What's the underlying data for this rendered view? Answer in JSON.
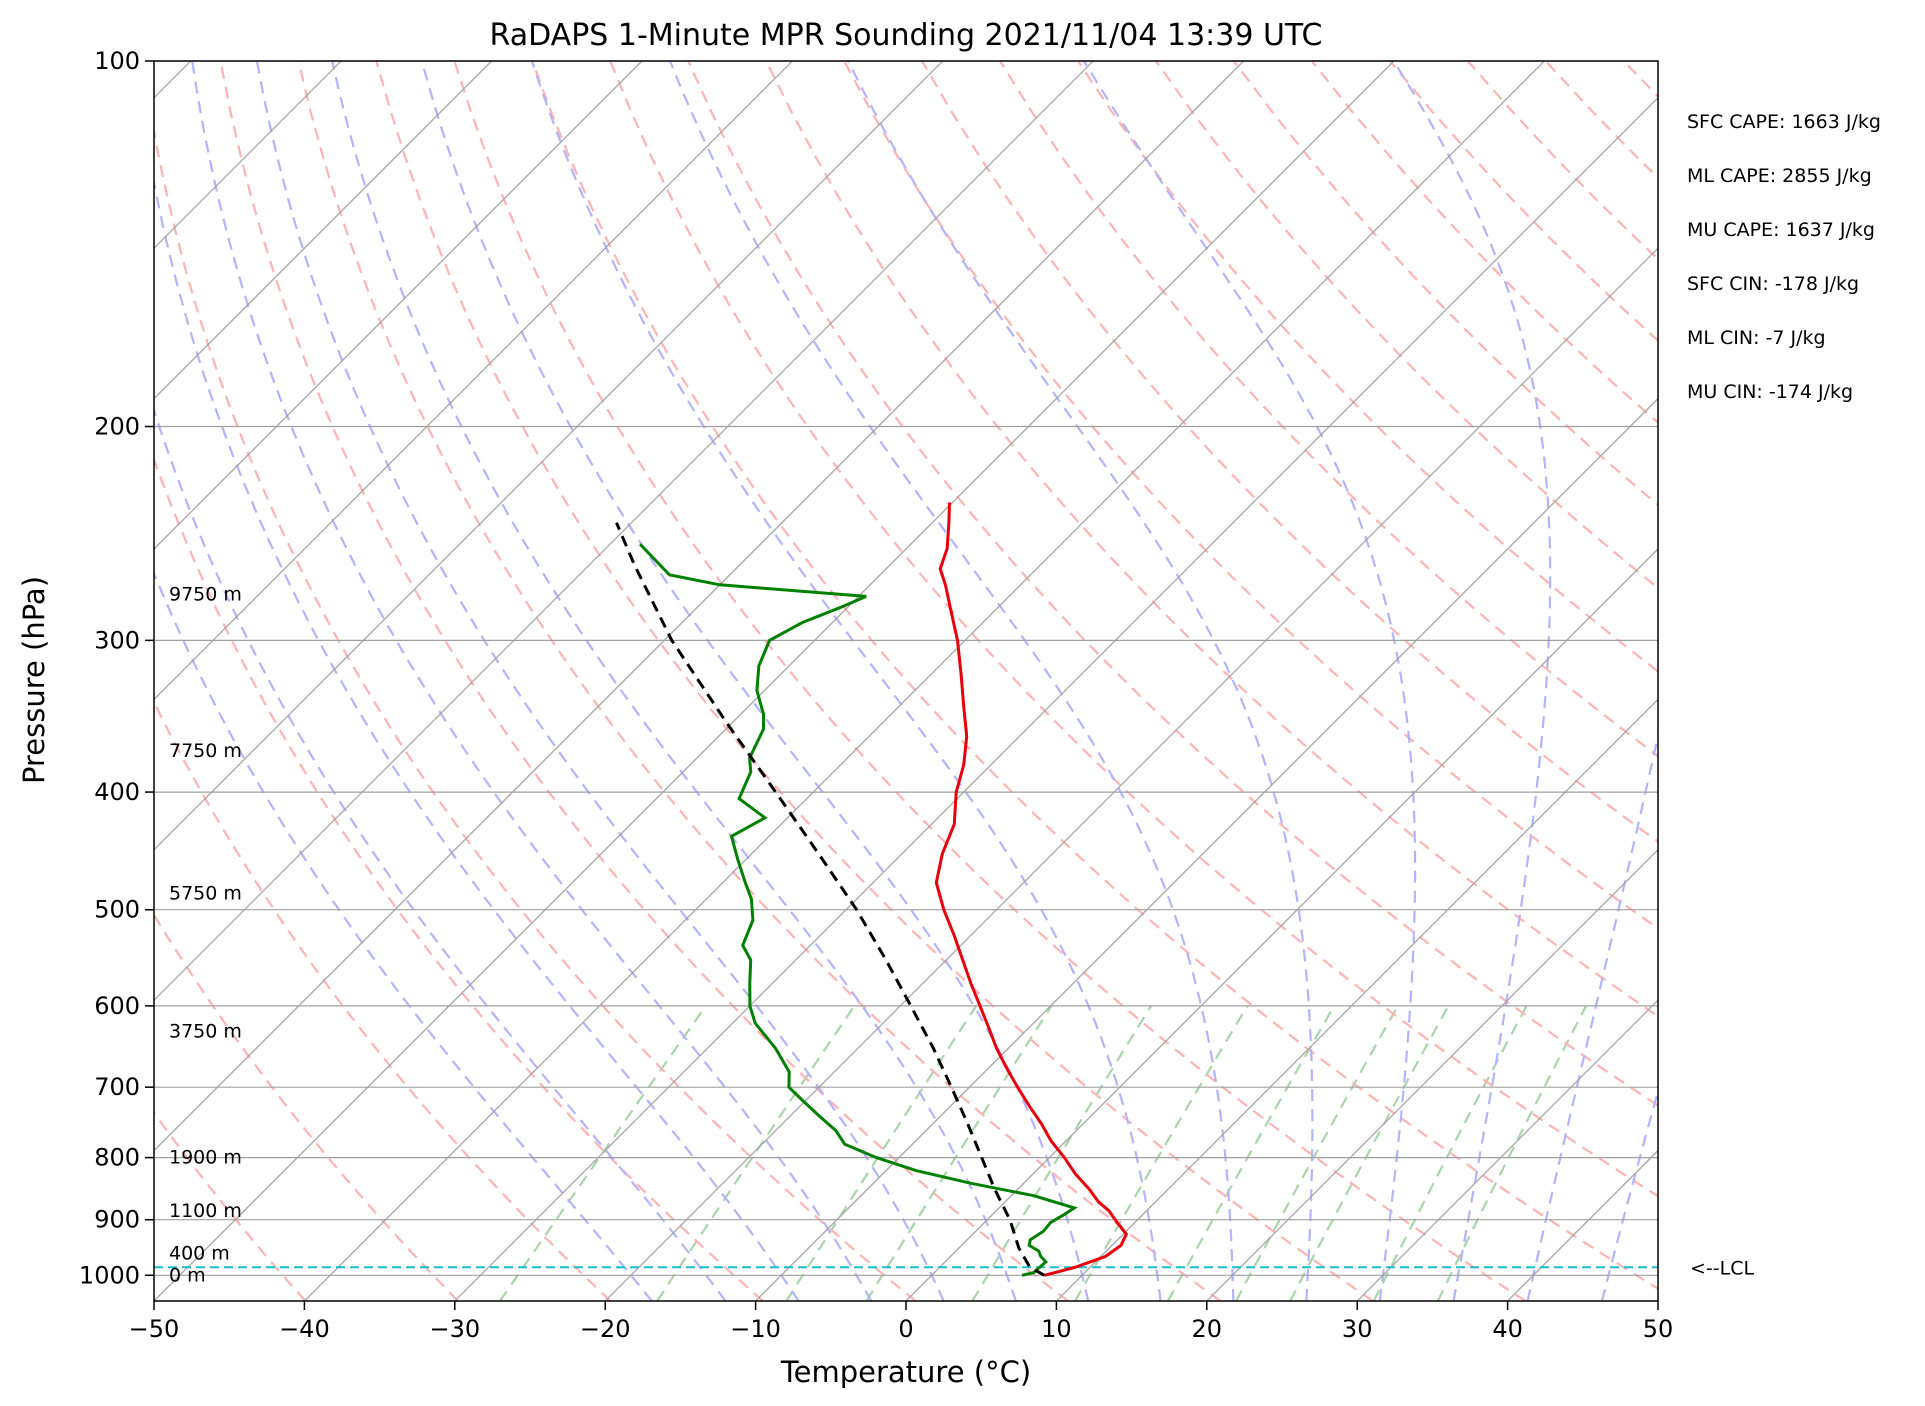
{
  "chart_data": {
    "type": "line",
    "subtype": "skew-T log-p sounding",
    "title": "RaDAPS 1-Minute MPR Sounding 2021/11/04 13:39 UTC",
    "xlabel": "Temperature (°C)",
    "ylabel": "Pressure (hPa)",
    "xlim": [
      -50,
      50
    ],
    "ylim": [
      1050,
      100
    ],
    "y_scale": "log",
    "x_ticks": [
      -50,
      -40,
      -30,
      -20,
      -10,
      0,
      10,
      20,
      30,
      40,
      50
    ],
    "x_tick_labels": [
      "−50",
      "−40",
      "−30",
      "−20",
      "−10",
      "0",
      "10",
      "20",
      "30",
      "40",
      "50"
    ],
    "y_ticks": [
      100,
      200,
      300,
      400,
      500,
      600,
      700,
      800,
      900,
      1000
    ],
    "y_tick_labels": [
      "100",
      "200",
      "300",
      "400",
      "500",
      "600",
      "700",
      "800",
      "900",
      "1000"
    ],
    "skew_degrees": 45,
    "grid": true,
    "background_lines": {
      "isotherms_color": "#a0a0a0",
      "dry_adiabats_color": "#ffb3b3",
      "moist_adiabats_color": "#b3b3ff",
      "mixing_ratio_color": "#aad4aa"
    },
    "series": [
      {
        "color": "#e8000b",
        "points": [
          {
            "p": 1000,
            "t": 7.5
          },
          {
            "p": 985,
            "t": 9.0
          },
          {
            "p": 965,
            "t": 10.3
          },
          {
            "p": 945,
            "t": 10.6
          },
          {
            "p": 925,
            "t": 10.2
          },
          {
            "p": 900,
            "t": 8.5
          },
          {
            "p": 885,
            "t": 7.5
          },
          {
            "p": 870,
            "t": 6.2
          },
          {
            "p": 850,
            "t": 4.8
          },
          {
            "p": 825,
            "t": 2.8
          },
          {
            "p": 800,
            "t": 1.0
          },
          {
            "p": 775,
            "t": -1.0
          },
          {
            "p": 750,
            "t": -2.8
          },
          {
            "p": 725,
            "t": -4.8
          },
          {
            "p": 700,
            "t": -6.8
          },
          {
            "p": 675,
            "t": -8.8
          },
          {
            "p": 650,
            "t": -10.8
          },
          {
            "p": 625,
            "t": -12.7
          },
          {
            "p": 600,
            "t": -14.7
          },
          {
            "p": 575,
            "t": -16.8
          },
          {
            "p": 550,
            "t": -18.9
          },
          {
            "p": 525,
            "t": -21.1
          },
          {
            "p": 500,
            "t": -23.5
          },
          {
            "p": 475,
            "t": -25.8
          },
          {
            "p": 450,
            "t": -27.3
          },
          {
            "p": 425,
            "t": -28.5
          },
          {
            "p": 400,
            "t": -30.5
          },
          {
            "p": 380,
            "t": -31.8
          },
          {
            "p": 360,
            "t": -33.5
          },
          {
            "p": 340,
            "t": -35.7
          },
          {
            "p": 320,
            "t": -38.0
          },
          {
            "p": 300,
            "t": -40.5
          },
          {
            "p": 285,
            "t": -42.7
          },
          {
            "p": 270,
            "t": -45.0
          },
          {
            "p": 262,
            "t": -46.4
          },
          {
            "p": 252,
            "t": -47.3
          },
          {
            "p": 240,
            "t": -48.9
          },
          {
            "p": 231,
            "t": -50.2
          }
        ]
      },
      {
        "color": "#008000",
        "points": [
          {
            "p": 1000,
            "t": 6.0
          },
          {
            "p": 995,
            "t": 6.6
          },
          {
            "p": 975,
            "t": 6.7
          },
          {
            "p": 965,
            "t": 6.0
          },
          {
            "p": 955,
            "t": 5.5
          },
          {
            "p": 945,
            "t": 4.5
          },
          {
            "p": 935,
            "t": 4.2
          },
          {
            "p": 920,
            "t": 4.5
          },
          {
            "p": 905,
            "t": 4.4
          },
          {
            "p": 890,
            "t": 4.8
          },
          {
            "p": 880,
            "t": 5.0
          },
          {
            "p": 860,
            "t": 1.5
          },
          {
            "p": 840,
            "t": -3.5
          },
          {
            "p": 820,
            "t": -8.0
          },
          {
            "p": 800,
            "t": -11.5
          },
          {
            "p": 780,
            "t": -14.5
          },
          {
            "p": 760,
            "t": -16.0
          },
          {
            "p": 740,
            "t": -18.0
          },
          {
            "p": 720,
            "t": -20.0
          },
          {
            "p": 700,
            "t": -22.0
          },
          {
            "p": 680,
            "t": -23.0
          },
          {
            "p": 650,
            "t": -25.5
          },
          {
            "p": 620,
            "t": -28.5
          },
          {
            "p": 600,
            "t": -30.0
          },
          {
            "p": 575,
            "t": -31.5
          },
          {
            "p": 550,
            "t": -33.0
          },
          {
            "p": 535,
            "t": -34.5
          },
          {
            "p": 510,
            "t": -35.5
          },
          {
            "p": 490,
            "t": -37.0
          },
          {
            "p": 475,
            "t": -38.5
          },
          {
            "p": 455,
            "t": -40.5
          },
          {
            "p": 435,
            "t": -42.5
          },
          {
            "p": 420,
            "t": -41.5
          },
          {
            "p": 405,
            "t": -44.5
          },
          {
            "p": 385,
            "t": -45.5
          },
          {
            "p": 375,
            "t": -46.5
          },
          {
            "p": 355,
            "t": -47.5
          },
          {
            "p": 345,
            "t": -48.5
          },
          {
            "p": 330,
            "t": -50.5
          },
          {
            "p": 315,
            "t": -52.0
          },
          {
            "p": 300,
            "t": -53.0
          },
          {
            "p": 290,
            "t": -52.0
          },
          {
            "p": 282,
            "t": -50.5
          },
          {
            "p": 276,
            "t": -49.5
          },
          {
            "p": 270,
            "t": -60.0
          },
          {
            "p": 265,
            "t": -64.0
          },
          {
            "p": 250,
            "t": -68.0
          }
        ]
      },
      {
        "color": "#000000",
        "dashed": true,
        "points": [
          {
            "p": 1000,
            "t": 7.5
          },
          {
            "p": 985,
            "t": 6.0
          },
          {
            "p": 950,
            "t": 4.0
          },
          {
            "p": 900,
            "t": 1.5
          },
          {
            "p": 850,
            "t": -1.5
          },
          {
            "p": 800,
            "t": -4.5
          },
          {
            "p": 750,
            "t": -7.7
          },
          {
            "p": 700,
            "t": -11.2
          },
          {
            "p": 650,
            "t": -15.0
          },
          {
            "p": 600,
            "t": -19.3
          },
          {
            "p": 550,
            "t": -24.0
          },
          {
            "p": 500,
            "t": -29.3
          },
          {
            "p": 450,
            "t": -35.5
          },
          {
            "p": 400,
            "t": -42.5
          },
          {
            "p": 350,
            "t": -50.5
          },
          {
            "p": 300,
            "t": -59.5
          },
          {
            "p": 260,
            "t": -67.0
          },
          {
            "p": 240,
            "t": -71.0
          }
        ]
      }
    ],
    "lcl": {
      "p": 985,
      "label": "<--LCL"
    },
    "height_labels": [
      {
        "text": "0 m",
        "p": 1000
      },
      {
        "text": "400 m",
        "p": 960
      },
      {
        "text": "1100 m",
        "p": 885
      },
      {
        "text": "1900 m",
        "p": 800
      },
      {
        "text": "3750 m",
        "p": 630
      },
      {
        "text": "5750 m",
        "p": 485
      },
      {
        "text": "7750 m",
        "p": 370
      },
      {
        "text": "9750 m",
        "p": 275
      }
    ],
    "stats": [
      "SFC CAPE: 1663 J/kg",
      "ML CAPE: 2855 J/kg",
      "MU CAPE: 1637 J/kg",
      "SFC CIN: -178 J/kg",
      "ML CIN: -7 J/kg",
      "MU CIN: -174 J/kg"
    ]
  }
}
